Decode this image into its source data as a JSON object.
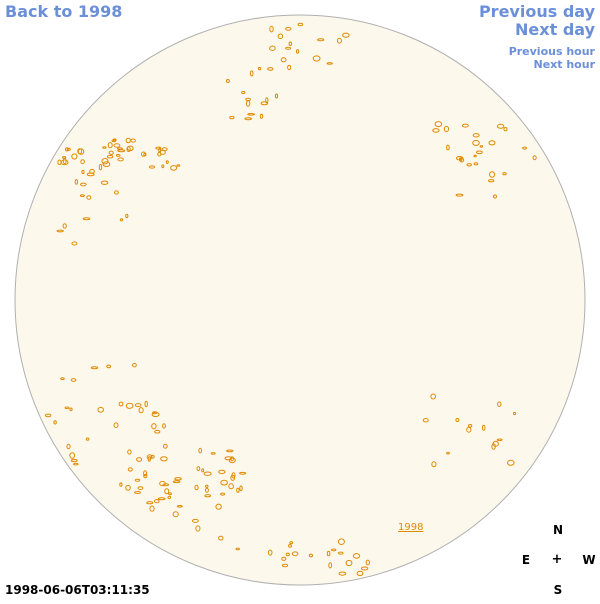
{
  "navigation": {
    "back_label": "Back to 1998",
    "previous_day_label": "Previous day",
    "next_day_label": "Next day",
    "previous_hour_label": "Previous hour",
    "next_hour_label": "Next hour"
  },
  "compass": {
    "north": "N",
    "east": "E",
    "center": "+",
    "west": "W",
    "south": "S"
  },
  "timestamp": "1998-06-06T03:11:35",
  "year_marker": "1998",
  "colors": {
    "disk_fill": "#fdf8ec",
    "disk_outline": "#b0b0b0",
    "contour": "#e08a00",
    "link": "#6b8fd8"
  }
}
